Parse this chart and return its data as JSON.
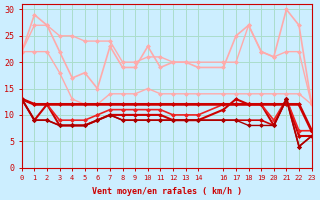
{
  "xlabel": "Vent moyen/en rafales ( km/h )",
  "ylabel": "",
  "xlim": [
    0,
    23
  ],
  "ylim": [
    0,
    31
  ],
  "yticks": [
    0,
    5,
    10,
    15,
    20,
    25,
    30
  ],
  "xticks": [
    0,
    1,
    2,
    3,
    4,
    5,
    6,
    7,
    8,
    9,
    10,
    11,
    12,
    13,
    14,
    16,
    17,
    18,
    19,
    20,
    21,
    22,
    23
  ],
  "bg_color": "#cceeff",
  "grid_color": "#aaddcc",
  "series": [
    {
      "x": [
        0,
        1,
        2,
        3,
        4,
        5,
        6,
        7,
        8,
        9,
        10,
        11,
        12,
        13,
        14,
        16,
        17,
        18,
        19,
        20,
        21,
        22,
        23
      ],
      "y": [
        22,
        29,
        27,
        22,
        17,
        18,
        15,
        23,
        19,
        19,
        23,
        19,
        20,
        20,
        19,
        19,
        25,
        27,
        22,
        21,
        30,
        27,
        12
      ],
      "color": "#ffaaaa",
      "lw": 1.2,
      "marker": "D",
      "ms": 2
    },
    {
      "x": [
        0,
        1,
        2,
        3,
        4,
        5,
        6,
        7,
        8,
        9,
        10,
        11,
        12,
        13,
        14,
        16,
        17,
        18,
        19,
        20,
        21,
        22,
        23
      ],
      "y": [
        22,
        27,
        27,
        25,
        25,
        24,
        24,
        24,
        20,
        20,
        21,
        21,
        20,
        20,
        20,
        20,
        20,
        27,
        22,
        21,
        22,
        22,
        12
      ],
      "color": "#ffaaaa",
      "lw": 1.0,
      "marker": "D",
      "ms": 2
    },
    {
      "x": [
        0,
        1,
        2,
        3,
        4,
        5,
        6,
        7,
        8,
        9,
        10,
        11,
        12,
        13,
        14,
        16,
        17,
        18,
        19,
        20,
        21,
        22,
        23
      ],
      "y": [
        22,
        22,
        22,
        18,
        13,
        12,
        12,
        14,
        14,
        14,
        15,
        14,
        14,
        14,
        14,
        14,
        14,
        14,
        14,
        14,
        14,
        14,
        12
      ],
      "color": "#ffaaaa",
      "lw": 1.0,
      "marker": "D",
      "ms": 2
    },
    {
      "x": [
        0,
        1,
        2,
        3,
        4,
        5,
        6,
        7,
        8,
        9,
        10,
        11,
        12,
        13,
        14,
        16,
        17,
        18,
        19,
        20,
        21,
        22,
        23
      ],
      "y": [
        13,
        9,
        12,
        8,
        8,
        8,
        9,
        10,
        10,
        10,
        10,
        10,
        9,
        9,
        9,
        11,
        13,
        12,
        12,
        8,
        13,
        6,
        6
      ],
      "color": "#cc0000",
      "lw": 1.5,
      "marker": "D",
      "ms": 2
    },
    {
      "x": [
        0,
        1,
        2,
        3,
        4,
        5,
        6,
        7,
        8,
        9,
        10,
        11,
        12,
        13,
        14,
        16,
        17,
        18,
        19,
        20,
        21,
        22,
        23
      ],
      "y": [
        13,
        12,
        12,
        9,
        9,
        9,
        10,
        11,
        11,
        11,
        11,
        11,
        10,
        10,
        10,
        12,
        12,
        12,
        12,
        9,
        13,
        7,
        7
      ],
      "color": "#ee2222",
      "lw": 1.2,
      "marker": "D",
      "ms": 2
    },
    {
      "x": [
        0,
        1,
        2,
        3,
        4,
        5,
        6,
        7,
        8,
        9,
        10,
        11,
        12,
        13,
        14,
        16,
        17,
        18,
        19,
        20,
        21,
        22,
        23
      ],
      "y": [
        13,
        12,
        12,
        12,
        12,
        12,
        12,
        12,
        12,
        12,
        12,
        12,
        12,
        12,
        12,
        12,
        12,
        12,
        12,
        12,
        12,
        12,
        7
      ],
      "color": "#cc0000",
      "lw": 2.0,
      "marker": "D",
      "ms": 2
    },
    {
      "x": [
        0,
        1,
        2,
        3,
        4,
        5,
        6,
        7,
        8,
        9,
        10,
        11,
        12,
        13,
        14,
        16,
        17,
        18,
        19,
        20,
        21,
        22,
        23
      ],
      "y": [
        13,
        9,
        9,
        8,
        8,
        8,
        9,
        10,
        9,
        9,
        9,
        9,
        9,
        9,
        9,
        9,
        9,
        9,
        9,
        8,
        13,
        4,
        6
      ],
      "color": "#cc0000",
      "lw": 1.2,
      "marker": "D",
      "ms": 2
    },
    {
      "x": [
        0,
        1,
        2,
        3,
        4,
        5,
        6,
        7,
        8,
        9,
        10,
        11,
        12,
        13,
        14,
        16,
        17,
        18,
        19,
        20,
        21,
        22,
        23
      ],
      "y": [
        13,
        9,
        9,
        8,
        8,
        8,
        9,
        10,
        9,
        9,
        9,
        9,
        9,
        9,
        9,
        9,
        9,
        8,
        8,
        8,
        13,
        4,
        6
      ],
      "color": "#aa0000",
      "lw": 1.0,
      "marker": "D",
      "ms": 2
    }
  ]
}
